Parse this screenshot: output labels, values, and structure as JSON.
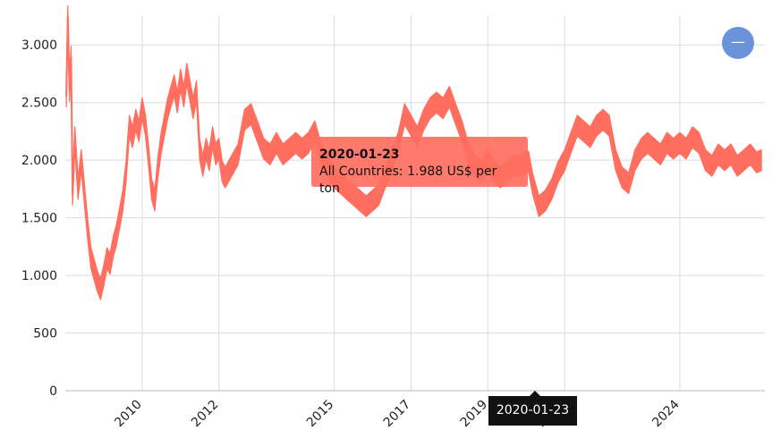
{
  "chart_data": {
    "type": "area",
    "x_type": "date",
    "title": "",
    "xlabel": "",
    "ylabel": "",
    "ylim": [
      0,
      3250
    ],
    "yticks": [
      0,
      500,
      1000,
      1500,
      2000,
      2500,
      3000
    ],
    "ytick_labels": [
      "0",
      "500",
      "1.000",
      "1.500",
      "2.000",
      "2.500",
      "3.000"
    ],
    "xticks": [
      "2010-01-01",
      "2012-01-01",
      "2015-01-01",
      "2017-01-01",
      "2019-01-01",
      "2021-01-01",
      "2024-01-01"
    ],
    "xtick_labels": [
      "2010",
      "2012",
      "2015",
      "2017",
      "2019",
      "2021",
      "2024"
    ],
    "grid": true,
    "color": "#ff6e5f",
    "series": [
      {
        "points": [
          [
            "2008-01-10",
            2550
          ],
          [
            "2008-01-25",
            3250
          ],
          [
            "2008-02-10",
            2600
          ],
          [
            "2008-02-25",
            2900
          ],
          [
            "2008-03-10",
            1700
          ],
          [
            "2008-04-01",
            2200
          ],
          [
            "2008-05-01",
            1750
          ],
          [
            "2008-06-01",
            2000
          ],
          [
            "2008-07-01",
            1700
          ],
          [
            "2008-08-01",
            1400
          ],
          [
            "2008-09-01",
            1150
          ],
          [
            "2008-10-01",
            1050
          ],
          [
            "2008-11-01",
            950
          ],
          [
            "2008-12-01",
            880
          ],
          [
            "2009-01-01",
            1000
          ],
          [
            "2009-02-01",
            1150
          ],
          [
            "2009-03-01",
            1100
          ],
          [
            "2009-04-01",
            1250
          ],
          [
            "2009-05-01",
            1350
          ],
          [
            "2009-06-01",
            1500
          ],
          [
            "2009-07-01",
            1650
          ],
          [
            "2009-08-01",
            1900
          ],
          [
            "2009-09-01",
            2300
          ],
          [
            "2009-10-01",
            2200
          ],
          [
            "2009-11-01",
            2350
          ],
          [
            "2009-12-01",
            2250
          ],
          [
            "2010-01-01",
            2450
          ],
          [
            "2010-02-01",
            2300
          ],
          [
            "2010-03-01",
            2050
          ],
          [
            "2010-04-01",
            1750
          ],
          [
            "2010-05-01",
            1650
          ],
          [
            "2010-06-01",
            1950
          ],
          [
            "2010-07-01",
            2150
          ],
          [
            "2010-08-01",
            2300
          ],
          [
            "2010-09-01",
            2450
          ],
          [
            "2010-10-01",
            2550
          ],
          [
            "2010-11-01",
            2650
          ],
          [
            "2010-12-01",
            2500
          ],
          [
            "2011-01-01",
            2700
          ],
          [
            "2011-02-01",
            2550
          ],
          [
            "2011-03-01",
            2750
          ],
          [
            "2011-04-01",
            2600
          ],
          [
            "2011-05-01",
            2450
          ],
          [
            "2011-06-01",
            2600
          ],
          [
            "2011-07-01",
            2100
          ],
          [
            "2011-08-01",
            1950
          ],
          [
            "2011-09-01",
            2100
          ],
          [
            "2011-10-01",
            2000
          ],
          [
            "2011-11-01",
            2200
          ],
          [
            "2011-12-01",
            2050
          ],
          [
            "2012-01-01",
            2100
          ],
          [
            "2012-02-01",
            1900
          ],
          [
            "2012-03-01",
            1850
          ],
          [
            "2012-05-01",
            1950
          ],
          [
            "2012-07-01",
            2050
          ],
          [
            "2012-09-01",
            2350
          ],
          [
            "2012-11-01",
            2400
          ],
          [
            "2013-01-01",
            2250
          ],
          [
            "2013-03-01",
            2100
          ],
          [
            "2013-05-01",
            2050
          ],
          [
            "2013-07-01",
            2150
          ],
          [
            "2013-09-01",
            2050
          ],
          [
            "2013-11-01",
            2100
          ],
          [
            "2014-01-01",
            2150
          ],
          [
            "2014-03-01",
            2100
          ],
          [
            "2014-05-01",
            2150
          ],
          [
            "2014-07-01",
            2250
          ],
          [
            "2014-09-01",
            2050
          ],
          [
            "2014-11-01",
            1950
          ],
          [
            "2015-01-01",
            1850
          ],
          [
            "2015-03-01",
            1800
          ],
          [
            "2015-05-01",
            1750
          ],
          [
            "2015-07-01",
            1700
          ],
          [
            "2015-09-01",
            1650
          ],
          [
            "2015-11-01",
            1600
          ],
          [
            "2016-01-01",
            1650
          ],
          [
            "2016-03-01",
            1700
          ],
          [
            "2016-05-01",
            1850
          ],
          [
            "2016-07-01",
            2000
          ],
          [
            "2016-09-01",
            2150
          ],
          [
            "2016-11-01",
            2400
          ],
          [
            "2017-01-01",
            2300
          ],
          [
            "2017-03-01",
            2200
          ],
          [
            "2017-05-01",
            2350
          ],
          [
            "2017-07-01",
            2450
          ],
          [
            "2017-09-01",
            2500
          ],
          [
            "2017-11-01",
            2450
          ],
          [
            "2018-01-01",
            2550
          ],
          [
            "2018-03-01",
            2400
          ],
          [
            "2018-05-01",
            2250
          ],
          [
            "2018-07-01",
            2050
          ],
          [
            "2018-09-01",
            1950
          ],
          [
            "2018-11-01",
            1900
          ],
          [
            "2019-01-01",
            2000
          ],
          [
            "2019-03-01",
            1900
          ],
          [
            "2019-05-01",
            1850
          ],
          [
            "2019-07-01",
            1900
          ],
          [
            "2019-09-01",
            1950
          ],
          [
            "2019-11-01",
            1950
          ],
          [
            "2020-01-23",
            1988
          ],
          [
            "2020-03-01",
            1800
          ],
          [
            "2020-05-01",
            1600
          ],
          [
            "2020-07-01",
            1650
          ],
          [
            "2020-09-01",
            1750
          ],
          [
            "2020-11-01",
            1900
          ],
          [
            "2021-01-01",
            2000
          ],
          [
            "2021-03-01",
            2150
          ],
          [
            "2021-05-01",
            2300
          ],
          [
            "2021-07-01",
            2250
          ],
          [
            "2021-09-01",
            2200
          ],
          [
            "2021-11-01",
            2300
          ],
          [
            "2022-01-01",
            2350
          ],
          [
            "2022-03-01",
            2300
          ],
          [
            "2022-05-01",
            2000
          ],
          [
            "2022-07-01",
            1850
          ],
          [
            "2022-09-01",
            1800
          ],
          [
            "2022-11-01",
            2000
          ],
          [
            "2023-01-01",
            2100
          ],
          [
            "2023-03-01",
            2150
          ],
          [
            "2023-05-01",
            2100
          ],
          [
            "2023-07-01",
            2050
          ],
          [
            "2023-09-01",
            2150
          ],
          [
            "2023-11-01",
            2100
          ],
          [
            "2024-01-01",
            2150
          ],
          [
            "2024-03-01",
            2100
          ],
          [
            "2024-05-01",
            2200
          ],
          [
            "2024-07-01",
            2150
          ],
          [
            "2024-09-01",
            2000
          ],
          [
            "2024-11-01",
            1950
          ],
          [
            "2025-01-01",
            2050
          ],
          [
            "2025-03-01",
            2000
          ],
          [
            "2025-05-01",
            2050
          ],
          [
            "2025-07-01",
            1950
          ],
          [
            "2025-09-01",
            2000
          ],
          [
            "2025-11-01",
            2050
          ],
          [
            "2026-01-01",
            1980
          ],
          [
            "2026-02-15",
            2000
          ]
        ]
      }
    ],
    "tooltip": {
      "date": "2020-01-23",
      "text": "All Countries: 1.988 US$ per ton"
    },
    "cursor_label": "2020-01-23"
  },
  "controls": {
    "zoom_out_icon": "minus-icon",
    "zoom_out_glyph": "—"
  },
  "colors": {
    "series": "#ff6e5f",
    "button": "#6a93dc"
  }
}
